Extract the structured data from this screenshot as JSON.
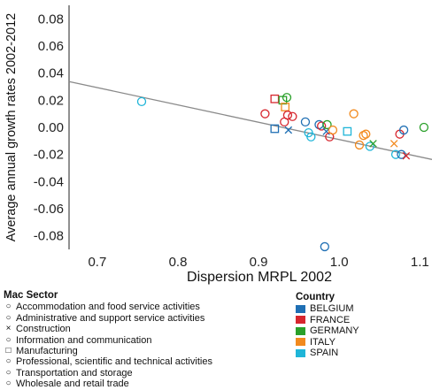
{
  "chart_data": {
    "type": "scatter",
    "xlabel": "Dispersion MRPL 2002",
    "ylabel": "Average annual growth rates 2002-2012",
    "xlim": [
      0.665,
      1.115
    ],
    "ylim": [
      -0.09,
      0.09
    ],
    "x_ticks": [
      "0.7",
      "0.8",
      "0.9",
      "1.0",
      "1.1"
    ],
    "x_tick_values": [
      0.7,
      0.8,
      0.9,
      1.0,
      1.1
    ],
    "y_ticks": [
      "0.08",
      "0.06",
      "0.04",
      "0.02",
      "0.00",
      "-0.02",
      "-0.04",
      "-0.06",
      "-0.08"
    ],
    "y_tick_values": [
      0.08,
      0.06,
      0.04,
      0.02,
      0.0,
      -0.02,
      -0.04,
      -0.06,
      -0.08
    ],
    "grid": false,
    "fit_line": {
      "slope": -0.1277,
      "intercept": 0.1187,
      "color": "#8a8a8a"
    },
    "legend_mac": {
      "title": "Mac Sector",
      "items": [
        {
          "symbol": "○",
          "label": "Accommodation and food service activities"
        },
        {
          "symbol": "○",
          "label": "Administrative and support service activities"
        },
        {
          "symbol": "×",
          "label": "Construction"
        },
        {
          "symbol": "○",
          "label": "Information and communication"
        },
        {
          "symbol": "□",
          "label": "Manufacturing"
        },
        {
          "symbol": "○",
          "label": "Professional, scientific and technical activities"
        },
        {
          "symbol": "○",
          "label": "Transportation and storage"
        },
        {
          "symbol": "○",
          "label": "Wholesale and retail trade"
        }
      ]
    },
    "legend_country": {
      "title": "Country",
      "items": [
        {
          "label": "BELGIUM",
          "color": "#1f6fb4"
        },
        {
          "label": "FRANCE",
          "color": "#d7262e"
        },
        {
          "label": "GERMANY",
          "color": "#2aa02a"
        },
        {
          "label": "ITALY",
          "color": "#f28a1e"
        },
        {
          "label": "SPAIN",
          "color": "#1fb5d8"
        }
      ]
    },
    "points": [
      {
        "x": 0.755,
        "y": 0.019,
        "shape": "circle",
        "country": "SPAIN"
      },
      {
        "x": 0.908,
        "y": 0.01,
        "shape": "circle",
        "country": "FRANCE"
      },
      {
        "x": 0.92,
        "y": 0.021,
        "shape": "square",
        "country": "FRANCE"
      },
      {
        "x": 0.92,
        "y": -0.001,
        "shape": "square",
        "country": "BELGIUM"
      },
      {
        "x": 0.93,
        "y": 0.02,
        "shape": "square",
        "country": "GERMANY"
      },
      {
        "x": 0.935,
        "y": 0.022,
        "shape": "circle",
        "country": "GERMANY"
      },
      {
        "x": 0.933,
        "y": 0.015,
        "shape": "square",
        "country": "ITALY"
      },
      {
        "x": 0.936,
        "y": 0.009,
        "shape": "circle",
        "country": "FRANCE"
      },
      {
        "x": 0.942,
        "y": 0.008,
        "shape": "circle",
        "country": "FRANCE"
      },
      {
        "x": 0.932,
        "y": 0.004,
        "shape": "circle",
        "country": "FRANCE"
      },
      {
        "x": 0.937,
        "y": -0.002,
        "shape": "cross",
        "country": "BELGIUM"
      },
      {
        "x": 0.958,
        "y": 0.004,
        "shape": "circle",
        "country": "BELGIUM"
      },
      {
        "x": 0.962,
        "y": -0.004,
        "shape": "circle",
        "country": "SPAIN"
      },
      {
        "x": 0.965,
        "y": -0.007,
        "shape": "circle",
        "country": "SPAIN"
      },
      {
        "x": 0.975,
        "y": 0.002,
        "shape": "circle",
        "country": "BELGIUM"
      },
      {
        "x": 0.978,
        "y": 0.001,
        "shape": "circle",
        "country": "FRANCE"
      },
      {
        "x": 0.985,
        "y": 0.002,
        "shape": "circle",
        "country": "GERMANY"
      },
      {
        "x": 0.984,
        "y": -0.003,
        "shape": "cross",
        "country": "BELGIUM"
      },
      {
        "x": 0.988,
        "y": -0.007,
        "shape": "circle",
        "country": "FRANCE"
      },
      {
        "x": 0.992,
        "y": -0.002,
        "shape": "circle",
        "country": "ITALY"
      },
      {
        "x": 1.01,
        "y": -0.003,
        "shape": "square",
        "country": "SPAIN"
      },
      {
        "x": 1.018,
        "y": 0.01,
        "shape": "circle",
        "country": "ITALY"
      },
      {
        "x": 1.025,
        "y": -0.013,
        "shape": "circle",
        "country": "ITALY"
      },
      {
        "x": 1.03,
        "y": -0.006,
        "shape": "circle",
        "country": "ITALY"
      },
      {
        "x": 1.033,
        "y": -0.005,
        "shape": "circle",
        "country": "ITALY"
      },
      {
        "x": 1.038,
        "y": -0.014,
        "shape": "circle",
        "country": "SPAIN"
      },
      {
        "x": 1.042,
        "y": -0.012,
        "shape": "cross",
        "country": "GERMANY"
      },
      {
        "x": 1.068,
        "y": -0.012,
        "shape": "cross",
        "country": "ITALY"
      },
      {
        "x": 1.07,
        "y": -0.02,
        "shape": "circle",
        "country": "SPAIN"
      },
      {
        "x": 1.075,
        "y": -0.005,
        "shape": "circle",
        "country": "FRANCE"
      },
      {
        "x": 1.077,
        "y": -0.02,
        "shape": "circle",
        "country": "BELGIUM"
      },
      {
        "x": 1.08,
        "y": -0.002,
        "shape": "circle",
        "country": "BELGIUM"
      },
      {
        "x": 1.083,
        "y": -0.021,
        "shape": "cross",
        "country": "FRANCE"
      },
      {
        "x": 1.105,
        "y": 0.0,
        "shape": "circle",
        "country": "GERMANY"
      },
      {
        "x": 0.982,
        "y": -0.088,
        "shape": "circle",
        "country": "BELGIUM"
      }
    ]
  }
}
